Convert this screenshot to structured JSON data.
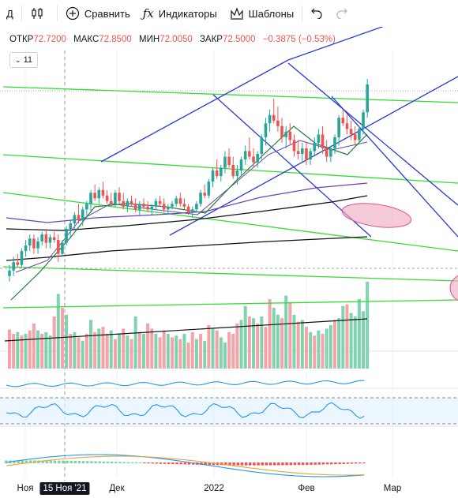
{
  "toolbar": {
    "interval": "Д",
    "compare": "Сравнить",
    "indicators": "Индикаторы",
    "templates": "Шаблоны",
    "icons": [
      "candles-icon",
      "plus-circle-icon",
      "fx-icon",
      "templates-icon",
      "undo-icon",
      "redo-icon"
    ]
  },
  "legend": {
    "open_label": "ОТКР",
    "open": "72.7200",
    "high_label": "МАКС",
    "high": "72.8500",
    "low_label": "МИН",
    "low": "72.0050",
    "close_label": "ЗАКР",
    "close": "72.5000",
    "change": "−0.3875 (−0.53%)",
    "indicator_count": "11"
  },
  "x_axis": {
    "labels": [
      "Ноя",
      "15 Ноя '21",
      "Дек",
      "2022",
      "Фев",
      "Мар"
    ],
    "highlighted": "15 Ноя '21"
  },
  "colors": {
    "up": "#26a69a",
    "down": "#ef5350",
    "volume_up": "#7fd4b0",
    "volume_down": "#f5a3a8",
    "channel": "#2b3bd1",
    "trend": "#33dd33",
    "ma_dark": "#111111",
    "ma_purple": "#6a3fb8",
    "ma_green": "#1e7b3a",
    "zone": "#f0a8c0",
    "rsi": "#2196f3",
    "macd_fast": "#2196f3",
    "macd_slow": "#f5a030"
  },
  "chart_data": {
    "type": "candlestick",
    "candles": [
      [
        0.2,
        0.28,
        0.16,
        0.24
      ],
      [
        0.24,
        0.34,
        0.2,
        0.3
      ],
      [
        0.3,
        0.36,
        0.26,
        0.28
      ],
      [
        0.28,
        0.4,
        0.26,
        0.38
      ],
      [
        0.38,
        0.46,
        0.34,
        0.42
      ],
      [
        0.42,
        0.5,
        0.38,
        0.47
      ],
      [
        0.47,
        0.5,
        0.36,
        0.4
      ],
      [
        0.4,
        0.48,
        0.36,
        0.45
      ],
      [
        0.45,
        0.52,
        0.42,
        0.5
      ],
      [
        0.5,
        0.54,
        0.4,
        0.44
      ],
      [
        0.44,
        0.5,
        0.4,
        0.48
      ],
      [
        0.48,
        0.52,
        0.44,
        0.46
      ],
      [
        0.46,
        0.5,
        0.3,
        0.36
      ],
      [
        0.36,
        0.46,
        0.34,
        0.44
      ],
      [
        0.44,
        0.56,
        0.42,
        0.54
      ],
      [
        0.54,
        0.6,
        0.48,
        0.58
      ],
      [
        0.58,
        0.66,
        0.54,
        0.64
      ],
      [
        0.64,
        0.72,
        0.58,
        0.6
      ],
      [
        0.6,
        0.7,
        0.56,
        0.68
      ],
      [
        0.68,
        0.74,
        0.62,
        0.72
      ],
      [
        0.72,
        0.82,
        0.66,
        0.8
      ],
      [
        0.8,
        0.86,
        0.74,
        0.76
      ],
      [
        0.76,
        0.84,
        0.72,
        0.82
      ],
      [
        0.82,
        0.88,
        0.76,
        0.78
      ],
      [
        0.78,
        0.82,
        0.72,
        0.74
      ],
      [
        0.74,
        0.8,
        0.7,
        0.72
      ],
      [
        0.72,
        0.82,
        0.7,
        0.8
      ],
      [
        0.8,
        0.84,
        0.72,
        0.74
      ],
      [
        0.74,
        0.8,
        0.68,
        0.7
      ],
      [
        0.7,
        0.76,
        0.66,
        0.74
      ],
      [
        0.74,
        0.78,
        0.7,
        0.72
      ],
      [
        0.72,
        0.76,
        0.66,
        0.68
      ],
      [
        0.68,
        0.74,
        0.64,
        0.72
      ],
      [
        0.72,
        0.76,
        0.68,
        0.7
      ],
      [
        0.7,
        0.74,
        0.66,
        0.68
      ],
      [
        0.68,
        0.72,
        0.64,
        0.7
      ],
      [
        0.7,
        0.76,
        0.68,
        0.74
      ],
      [
        0.74,
        0.78,
        0.7,
        0.72
      ],
      [
        0.72,
        0.76,
        0.66,
        0.68
      ],
      [
        0.68,
        0.72,
        0.64,
        0.7
      ],
      [
        0.7,
        0.74,
        0.68,
        0.72
      ],
      [
        0.72,
        0.78,
        0.7,
        0.76
      ],
      [
        0.76,
        0.8,
        0.7,
        0.72
      ],
      [
        0.72,
        0.76,
        0.68,
        0.7
      ],
      [
        0.7,
        0.72,
        0.64,
        0.66
      ],
      [
        0.66,
        0.7,
        0.62,
        0.68
      ],
      [
        0.68,
        0.74,
        0.66,
        0.72
      ],
      [
        0.72,
        0.82,
        0.7,
        0.8
      ],
      [
        0.8,
        0.86,
        0.76,
        0.78
      ],
      [
        0.78,
        0.9,
        0.76,
        0.88
      ],
      [
        0.88,
        0.98,
        0.84,
        0.96
      ],
      [
        0.96,
        1.04,
        0.9,
        0.92
      ],
      [
        0.92,
        1.0,
        0.88,
        0.98
      ],
      [
        0.98,
        1.1,
        0.94,
        1.06
      ],
      [
        1.06,
        1.12,
        0.98,
        1.0
      ],
      [
        1.0,
        1.06,
        0.9,
        0.92
      ],
      [
        0.92,
        1.0,
        0.86,
        0.96
      ],
      [
        0.96,
        1.06,
        0.92,
        1.04
      ],
      [
        1.04,
        1.14,
        1.0,
        1.1
      ],
      [
        1.1,
        1.2,
        1.04,
        1.06
      ],
      [
        1.06,
        1.12,
        0.98,
        1.02
      ],
      [
        1.02,
        1.1,
        0.98,
        1.08
      ],
      [
        1.08,
        1.22,
        1.04,
        1.2
      ],
      [
        1.2,
        1.34,
        1.14,
        1.3
      ],
      [
        1.3,
        1.4,
        1.24,
        1.36
      ],
      [
        1.36,
        1.48,
        1.3,
        1.32
      ],
      [
        1.32,
        1.42,
        1.24,
        1.28
      ],
      [
        1.28,
        1.34,
        1.16,
        1.2
      ],
      [
        1.2,
        1.28,
        1.12,
        1.24
      ],
      [
        1.24,
        1.3,
        1.14,
        1.18
      ],
      [
        1.18,
        1.22,
        1.06,
        1.1
      ],
      [
        1.1,
        1.18,
        1.04,
        1.08
      ],
      [
        1.08,
        1.16,
        1.02,
        1.12
      ],
      [
        1.12,
        1.16,
        1.0,
        1.04
      ],
      [
        1.04,
        1.12,
        1.0,
        1.1
      ],
      [
        1.1,
        1.2,
        1.06,
        1.16
      ],
      [
        1.16,
        1.26,
        1.12,
        1.22
      ],
      [
        1.22,
        1.28,
        1.08,
        1.12
      ],
      [
        1.12,
        1.18,
        1.02,
        1.06
      ],
      [
        1.06,
        1.14,
        1.02,
        1.12
      ],
      [
        1.12,
        1.22,
        1.08,
        1.2
      ],
      [
        1.2,
        1.36,
        1.14,
        1.34
      ],
      [
        1.34,
        1.4,
        1.28,
        1.3
      ],
      [
        1.3,
        1.36,
        1.22,
        1.26
      ],
      [
        1.26,
        1.32,
        1.18,
        1.22
      ],
      [
        1.22,
        1.28,
        1.14,
        1.18
      ],
      [
        1.18,
        1.28,
        1.16,
        1.26
      ],
      [
        1.26,
        1.4,
        1.22,
        1.38
      ],
      [
        1.38,
        1.62,
        1.34,
        1.58
      ]
    ],
    "volume": [
      [
        0.45,
        0
      ],
      [
        0.4,
        0
      ],
      [
        0.42,
        1
      ],
      [
        0.38,
        0
      ],
      [
        0.4,
        1
      ],
      [
        0.44,
        0
      ],
      [
        0.52,
        0
      ],
      [
        0.44,
        1
      ],
      [
        0.4,
        0
      ],
      [
        0.42,
        1
      ],
      [
        0.38,
        1
      ],
      [
        0.6,
        0
      ],
      [
        0.86,
        1
      ],
      [
        0.7,
        0
      ],
      [
        0.62,
        1
      ],
      [
        0.4,
        0
      ],
      [
        0.42,
        1
      ],
      [
        0.36,
        0
      ],
      [
        0.32,
        1
      ],
      [
        0.4,
        0
      ],
      [
        0.56,
        1
      ],
      [
        0.42,
        0
      ],
      [
        0.46,
        1
      ],
      [
        0.48,
        0
      ],
      [
        0.4,
        0
      ],
      [
        0.44,
        1
      ],
      [
        0.34,
        0
      ],
      [
        0.4,
        1
      ],
      [
        0.46,
        0
      ],
      [
        0.38,
        1
      ],
      [
        0.34,
        0
      ],
      [
        0.6,
        1
      ],
      [
        0.42,
        0
      ],
      [
        0.4,
        1
      ],
      [
        0.52,
        0
      ],
      [
        0.46,
        0
      ],
      [
        0.4,
        1
      ],
      [
        0.36,
        0
      ],
      [
        0.44,
        0
      ],
      [
        0.4,
        1
      ],
      [
        0.36,
        0
      ],
      [
        0.38,
        1
      ],
      [
        0.34,
        0
      ],
      [
        0.4,
        1
      ],
      [
        0.3,
        0
      ],
      [
        0.42,
        0
      ],
      [
        0.34,
        1
      ],
      [
        0.4,
        0
      ],
      [
        0.32,
        1
      ],
      [
        0.5,
        0
      ],
      [
        0.46,
        1
      ],
      [
        0.44,
        0
      ],
      [
        0.36,
        1
      ],
      [
        0.3,
        1
      ],
      [
        0.42,
        0
      ],
      [
        0.4,
        0
      ],
      [
        0.52,
        0
      ],
      [
        0.56,
        1
      ],
      [
        0.72,
        1
      ],
      [
        0.6,
        0
      ],
      [
        0.58,
        1
      ],
      [
        0.52,
        0
      ],
      [
        0.6,
        1
      ],
      [
        0.48,
        0
      ],
      [
        0.8,
        0
      ],
      [
        0.7,
        1
      ],
      [
        0.62,
        1
      ],
      [
        0.58,
        0
      ],
      [
        0.84,
        1
      ],
      [
        0.76,
        0
      ],
      [
        0.62,
        1
      ],
      [
        0.54,
        0
      ],
      [
        0.56,
        1
      ],
      [
        0.48,
        0
      ],
      [
        0.42,
        1
      ],
      [
        0.38,
        0
      ],
      [
        0.44,
        1
      ],
      [
        0.4,
        0
      ],
      [
        0.46,
        1
      ],
      [
        0.5,
        1
      ],
      [
        0.56,
        0
      ],
      [
        0.58,
        1
      ],
      [
        0.72,
        1
      ],
      [
        0.74,
        0
      ],
      [
        0.64,
        1
      ],
      [
        0.6,
        1
      ],
      [
        0.8,
        1
      ],
      [
        0.66,
        1
      ],
      [
        1.0,
        1
      ]
    ]
  }
}
